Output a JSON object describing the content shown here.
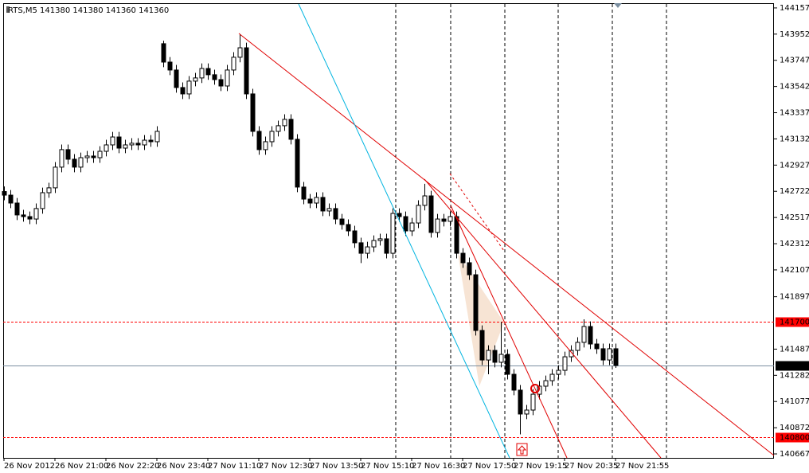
{
  "chart_data": {
    "type": "candlestick",
    "title": "RTS,M5  141380 141380 141360 141360",
    "xticks": [
      "26 Nov 2012",
      "26 Nov 21:00",
      "26 Nov 22:20",
      "26 Nov 23:40",
      "27 Nov 11:10",
      "27 Nov 12:30",
      "27 Nov 13:50",
      "27 Nov 15:10",
      "27 Nov 16:30",
      "27 Nov 17:50",
      "27 Nov 19:15",
      "27 Nov 20:35",
      "27 Nov 21:55"
    ],
    "ylim": [
      140636,
      144194
    ],
    "yticks": [
      144157,
      143952,
      143747,
      143542,
      143337,
      143132,
      142927,
      142722,
      142517,
      142312,
      142107,
      141897,
      141487,
      141282,
      141077,
      140872,
      140667
    ],
    "open": [
      142720,
      142692,
      142630,
      142537,
      142524,
      142505,
      142587,
      142711,
      142749,
      142911,
      143048,
      142973,
      142911,
      142985,
      142998,
      142985,
      143035,
      143085,
      143147,
      143060,
      143085,
      143098,
      143085,
      143122,
      143110,
      143877,
      143733,
      143671,
      143534,
      143484,
      143584,
      143609,
      143683,
      143634,
      143596,
      143546,
      143671,
      143771,
      143845,
      143484,
      143191,
      143048,
      143110,
      143191,
      143235,
      143285,
      143129,
      142755,
      142661,
      142630,
      142674,
      142568,
      142587,
      142505,
      142462,
      142412,
      142319,
      142237,
      142287,
      142337,
      142350,
      142237,
      142549,
      142524,
      142412,
      142474,
      142612,
      142686,
      142400,
      142505,
      142487,
      142524,
      142237,
      142163,
      142069,
      141633,
      141402,
      141477,
      141384,
      141446,
      141290,
      141166,
      140979,
      141010,
      141134,
      141197,
      141240,
      141290,
      141321,
      141427,
      141477,
      141540,
      141664,
      141527,
      141490,
      141402,
      141490
    ],
    "high": [
      142760,
      142732,
      142670,
      142577,
      142564,
      142627,
      142751,
      142789,
      142951,
      143088,
      143088,
      143013,
      143025,
      143038,
      143038,
      143075,
      143125,
      143187,
      143187,
      143125,
      143138,
      143138,
      143162,
      143162,
      143231,
      143900,
      143773,
      143711,
      143574,
      143624,
      143649,
      143723,
      143723,
      143674,
      143636,
      143711,
      143811,
      143952,
      143885,
      143524,
      143231,
      143150,
      143231,
      143275,
      143325,
      143325,
      143169,
      142795,
      142701,
      142714,
      142714,
      142627,
      142627,
      142545,
      142502,
      142452,
      142359,
      142327,
      142377,
      142390,
      142390,
      142589,
      142589,
      142564,
      142514,
      142652,
      142780,
      142726,
      142545,
      142545,
      142564,
      142564,
      142277,
      142203,
      142109,
      141673,
      141517,
      141517,
      141700,
      141486,
      141330,
      141206,
      141050,
      141174,
      141237,
      141280,
      141330,
      141361,
      141467,
      141517,
      141580,
      141720,
      141704,
      141567,
      141530,
      141530,
      141530
    ],
    "low": [
      142652,
      142590,
      142497,
      142484,
      142465,
      142465,
      142547,
      142671,
      142709,
      142871,
      142933,
      142871,
      142871,
      142945,
      142945,
      142945,
      142995,
      143045,
      143020,
      143020,
      143045,
      143045,
      143045,
      143070,
      143070,
      143693,
      143631,
      143494,
      143444,
      143444,
      143544,
      143569,
      143594,
      143556,
      143506,
      143506,
      143631,
      143731,
      143444,
      143151,
      143008,
      143008,
      143070,
      143151,
      143195,
      143089,
      142715,
      142621,
      142590,
      142590,
      142528,
      142528,
      142465,
      142422,
      142372,
      142279,
      142160,
      142197,
      142247,
      142297,
      142197,
      142197,
      142484,
      142372,
      142372,
      142434,
      142572,
      142360,
      142360,
      142447,
      142447,
      142197,
      142123,
      142029,
      141593,
      141362,
      141290,
      141344,
      141344,
      141250,
      141126,
      140820,
      140939,
      140970,
      141094,
      141157,
      141200,
      141250,
      141281,
      141387,
      141437,
      141500,
      141487,
      141450,
      141362,
      141362,
      141340
    ],
    "close": [
      142692,
      142630,
      142537,
      142524,
      142505,
      142587,
      142711,
      142749,
      142911,
      143048,
      142973,
      142911,
      142985,
      142998,
      142985,
      143035,
      143085,
      143147,
      143060,
      143085,
      143098,
      143085,
      143122,
      143110,
      143191,
      143733,
      143671,
      143534,
      143484,
      143584,
      143609,
      143683,
      143634,
      143596,
      143546,
      143671,
      143771,
      143845,
      143484,
      143191,
      143048,
      143110,
      143191,
      143235,
      143285,
      143129,
      142755,
      142661,
      142630,
      142674,
      142568,
      142587,
      142505,
      142462,
      142412,
      142319,
      142237,
      142287,
      142337,
      142350,
      142237,
      142549,
      142524,
      142412,
      142474,
      142612,
      142686,
      142400,
      142505,
      142487,
      142524,
      142237,
      142163,
      142069,
      141633,
      141402,
      141477,
      141384,
      141446,
      141290,
      141166,
      140979,
      141010,
      141134,
      141197,
      141240,
      141290,
      141321,
      141427,
      141477,
      141540,
      141664,
      141527,
      141490,
      141402,
      141490,
      141360
    ],
    "hlines": [
      {
        "value": 141700,
        "color": "#ff0000",
        "dashed": true
      },
      {
        "value": 140800,
        "color": "#ff0000",
        "dashed": true
      },
      {
        "value": 141360,
        "color": "#7a8ea0",
        "dashed": false
      }
    ],
    "grid": false
  }
}
